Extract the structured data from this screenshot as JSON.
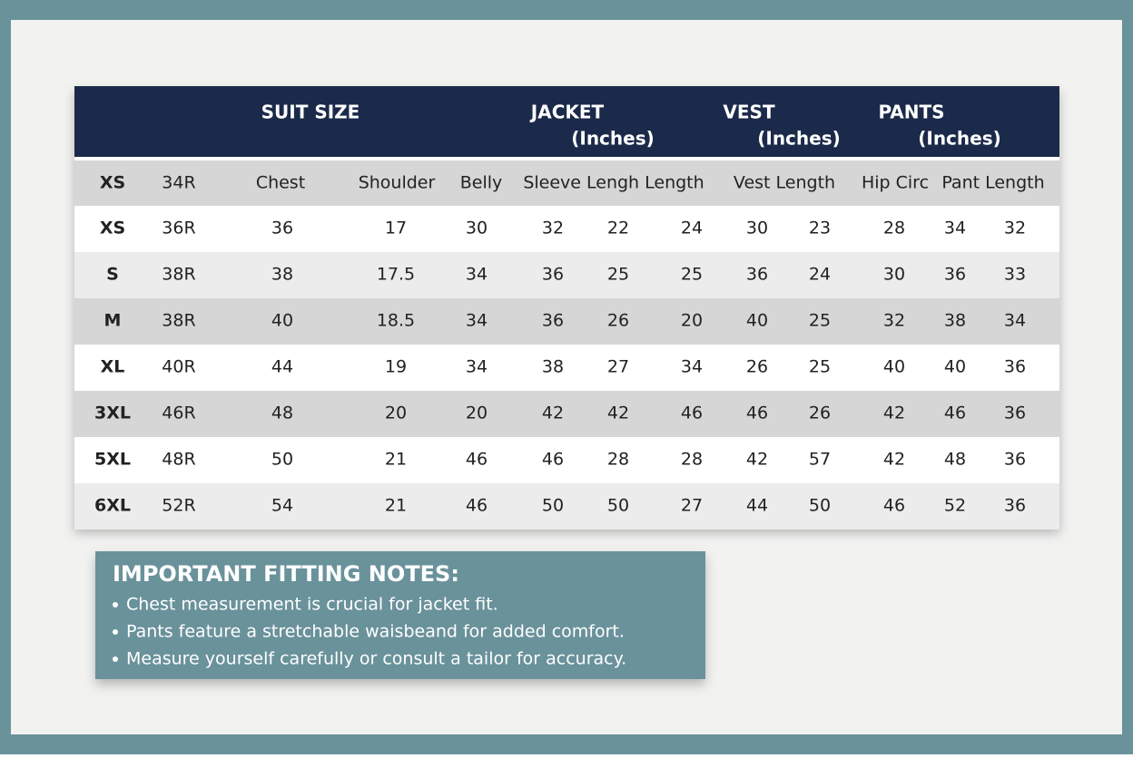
{
  "table": {
    "header": {
      "suit_size": "SUIT SIZE",
      "jacket": "JACKET",
      "jacket_unit": "(Inches)",
      "vest": "VEST",
      "vest_unit": "(Inches)",
      "pants": "PANTS",
      "pants_unit": "(Inches)"
    },
    "subheader": [
      "XS",
      "34R",
      "Chest",
      "Shoulder",
      "Belly",
      "Sleeve Lengh Length",
      "Vest Length",
      "Hip Circ",
      "Pant Length"
    ],
    "rows": [
      [
        "XS",
        "36R",
        36,
        17,
        30,
        32,
        22,
        24,
        30,
        23,
        28,
        34,
        32
      ],
      [
        "S",
        "38R",
        38,
        17.5,
        34,
        36,
        25,
        25,
        36,
        24,
        30,
        36,
        33
      ],
      [
        "M",
        "38R",
        40,
        18.5,
        34,
        36,
        26,
        20,
        40,
        25,
        32,
        38,
        34
      ],
      [
        "XL",
        "40R",
        44,
        19,
        34,
        38,
        27,
        34,
        26,
        25,
        40,
        40,
        36
      ],
      [
        "3XL",
        "46R",
        48,
        20,
        20,
        42,
        42,
        46,
        46,
        26,
        42,
        46,
        36
      ],
      [
        "5XL",
        "48R",
        50,
        21,
        46,
        46,
        28,
        28,
        42,
        57,
        42,
        48,
        36
      ],
      [
        "6XL",
        "52R",
        54,
        21,
        46,
        50,
        50,
        27,
        44,
        50,
        46,
        52,
        36
      ]
    ]
  },
  "notes": {
    "title": "IMPORTANT FITTING NOTES:",
    "items": [
      "Chest measurement is crucial for jacket fit.",
      "Pants feature a stretchable waisbeand for added comfort.",
      "Measure yourself carefully or consult a tailor for accuracy."
    ]
  }
}
